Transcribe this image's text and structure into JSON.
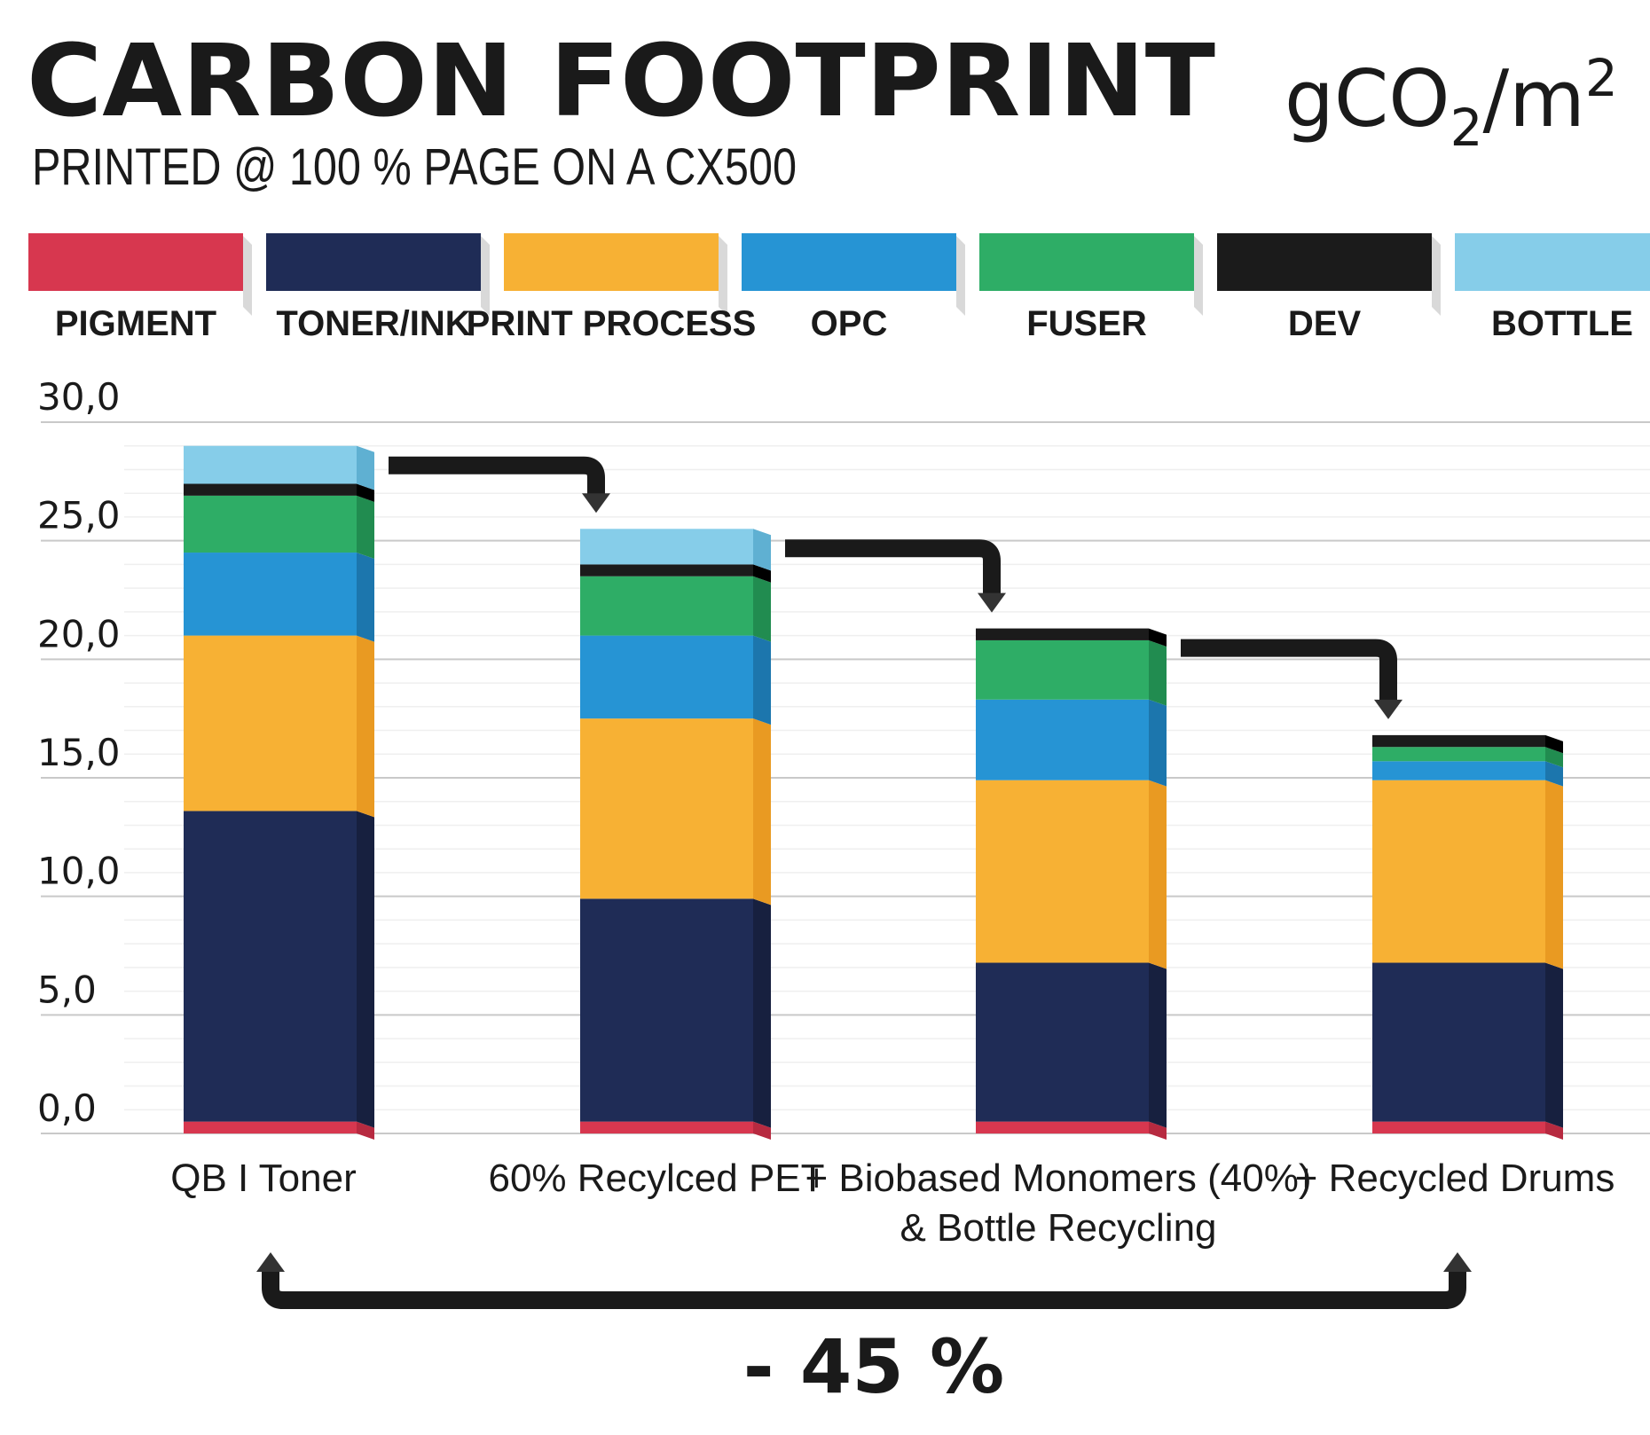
{
  "chart_data": {
    "type": "bar",
    "stacked": true,
    "title": "CARBON FOOTPRINT",
    "unit": {
      "base": "gCO",
      "sub": "2",
      "sep": "/m",
      "sup": "2"
    },
    "subtitle": "PRINTED @ 100 % PAGE ON A CX500",
    "categories": [
      [
        "QB I Toner"
      ],
      [
        "60% Recylced PET"
      ],
      [
        "+ Biobased Monomers (40%)",
        "& Bottle Recycling"
      ],
      [
        "+ Recycled Drums"
      ]
    ],
    "series": [
      {
        "name": "PIGMENT",
        "color": "#d7374f",
        "side": "#b72a40",
        "values": [
          0.5,
          0.5,
          0.5,
          0.5
        ]
      },
      {
        "name": "TONER/INK",
        "color": "#1f2c56",
        "side": "#17203f",
        "values": [
          13.1,
          9.4,
          6.7,
          6.7
        ]
      },
      {
        "name": "PRINT PROCESS",
        "color": "#f7b134",
        "side": "#e99a22",
        "values": [
          7.4,
          7.6,
          7.7,
          7.7
        ]
      },
      {
        "name": "OPC",
        "color": "#2694d4",
        "side": "#1c76ad",
        "values": [
          3.5,
          3.5,
          3.4,
          0.8
        ]
      },
      {
        "name": "FUSER",
        "color": "#2ead66",
        "side": "#218c50",
        "values": [
          2.4,
          2.5,
          2.5,
          0.6
        ]
      },
      {
        "name": "DEV",
        "color": "#1b1b1b",
        "side": "#000000",
        "values": [
          0.5,
          0.5,
          0.5,
          0.5
        ]
      },
      {
        "name": "BOTTLE",
        "color": "#86cde9",
        "side": "#5fb0d2",
        "values": [
          1.6,
          1.5,
          0.0,
          0.0
        ]
      }
    ],
    "yticks": [
      "0,0",
      "5,0",
      "10,0",
      "15,0",
      "20,0",
      "25,0",
      "30,0"
    ],
    "ylim": [
      0,
      30
    ],
    "grid": true,
    "legend": "top",
    "annotation": "- 45 %"
  }
}
